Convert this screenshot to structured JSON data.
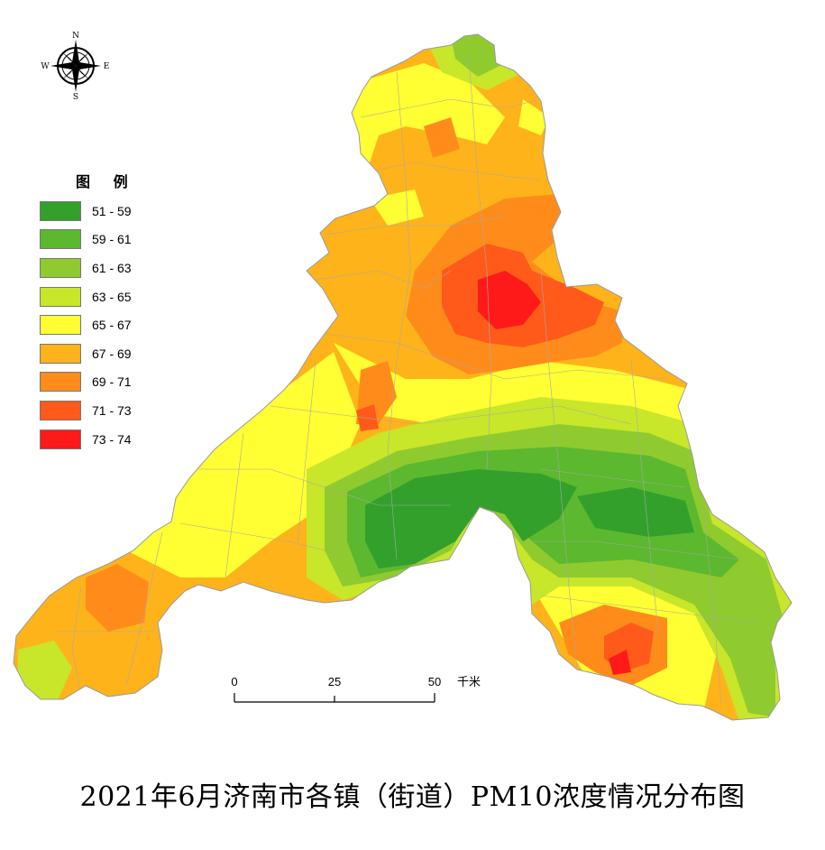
{
  "title": "2021年6月济南市各镇（街道）PM10浓度情况分布图",
  "compass": {
    "north": "N",
    "south": "S",
    "east": "E",
    "west": "W"
  },
  "legend": {
    "title": "图 例",
    "items": [
      {
        "label": "51 - 59",
        "color": "#33a02c"
      },
      {
        "label": "59 - 61",
        "color": "#5cb82e"
      },
      {
        "label": "61 - 63",
        "color": "#8fcb2e"
      },
      {
        "label": "63 - 65",
        "color": "#c8e62a"
      },
      {
        "label": "65 - 67",
        "color": "#ffff33"
      },
      {
        "label": "67 - 69",
        "color": "#ffb31a"
      },
      {
        "label": "69 - 71",
        "color": "#ff8c1a"
      },
      {
        "label": "71 - 73",
        "color": "#ff5a1a"
      },
      {
        "label": "73 - 74",
        "color": "#ff1a1a"
      }
    ]
  },
  "scale_bar": {
    "tick_0": "0",
    "tick_1": "25",
    "tick_2": "50",
    "unit": "千米"
  }
}
